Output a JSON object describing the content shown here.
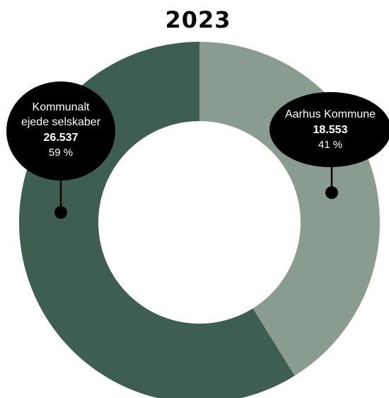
{
  "chart_data": {
    "type": "pie",
    "title": "2023",
    "categories": [
      "Aarhus Kommune",
      "Kommunalt ejede selskaber"
    ],
    "series": [
      {
        "values": [
          18553,
          26537
        ]
      }
    ],
    "percent_labels": [
      "41 %",
      "59 %"
    ],
    "value_labels": [
      "18.553",
      "26.537"
    ],
    "label_lines": {
      "aarhus": [
        "Aarhus Kommune"
      ],
      "selskaber": [
        "Kommunalt",
        "ejede selskaber"
      ]
    },
    "colors": {
      "aarhus": "#8a9b8f",
      "selskaber": "#3f5e52",
      "callout": "#000000"
    },
    "start_at": "top",
    "direction": "clockwise",
    "legend": "none"
  }
}
